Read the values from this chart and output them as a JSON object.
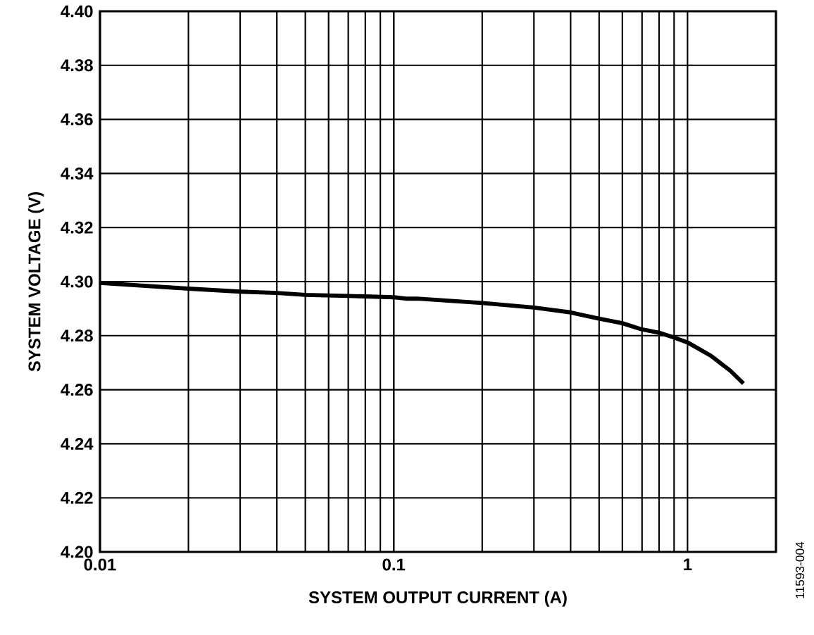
{
  "chart_data": {
    "type": "line",
    "xlabel": "SYSTEM OUTPUT CURRENT (A)",
    "ylabel": "SYSTEM VOLTAGE (V)",
    "annotations": [
      "11593-004"
    ],
    "log": "x",
    "grid": true,
    "xlim": [
      0.01,
      2
    ],
    "xticks": [
      0.01,
      0.1,
      1
    ],
    "ylim": [
      4.2,
      4.4
    ],
    "yticks": [
      {
        "value": 4.2,
        "label": "4.20"
      },
      {
        "value": 4.22,
        "label": "4.22"
      },
      {
        "value": 4.24,
        "label": "4.24"
      },
      {
        "value": 4.26,
        "label": "4.26"
      },
      {
        "value": 4.28,
        "label": "4.28"
      },
      {
        "value": 4.3,
        "label": "4.30"
      },
      {
        "value": 4.32,
        "label": "4.32"
      },
      {
        "value": 4.34,
        "label": "4.34"
      },
      {
        "value": 4.36,
        "label": "4.36"
      },
      {
        "value": 4.38,
        "label": "4.38"
      },
      {
        "value": 4.4,
        "label": "4.40"
      }
    ],
    "series": [
      {
        "color": "#000000",
        "x": [
          0.01,
          0.02,
          0.03,
          0.04,
          0.05,
          0.07,
          0.1,
          0.11,
          0.12,
          0.2,
          0.3,
          0.4,
          0.5,
          0.6,
          0.7,
          0.8,
          0.9,
          1.0,
          1.2,
          1.4,
          1.55
        ],
        "values": [
          4.2995,
          4.2974,
          4.2963,
          4.2958,
          4.2951,
          4.2947,
          4.2942,
          4.2937,
          4.2937,
          4.2921,
          4.2904,
          4.2886,
          4.2863,
          4.2846,
          4.2823,
          4.2811,
          4.2793,
          4.2775,
          4.2726,
          4.267,
          4.2623
        ]
      }
    ]
  }
}
